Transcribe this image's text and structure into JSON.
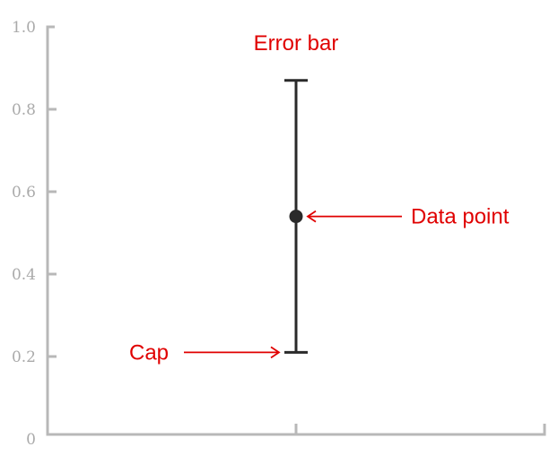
{
  "chart_data": {
    "type": "scatter",
    "title": "",
    "xlabel": "",
    "ylabel": "",
    "ylim": [
      0,
      1.0
    ],
    "y_ticks": [
      {
        "value": 0,
        "label": "0"
      },
      {
        "value": 0.2,
        "label": "0.2"
      },
      {
        "value": 0.4,
        "label": "0.4"
      },
      {
        "value": 0.6,
        "label": "0.6"
      },
      {
        "value": 0.8,
        "label": "0.8"
      },
      {
        "value": 1.0,
        "label": "1.0"
      }
    ],
    "points": [
      {
        "y": 0.54,
        "y_low": 0.21,
        "y_high": 0.87
      }
    ],
    "annotations": [
      {
        "id": "errorbar",
        "text": "Error bar",
        "target": "errorbar"
      },
      {
        "id": "datapoint",
        "text": "Data point",
        "target": "point"
      },
      {
        "id": "cap",
        "text": "Cap",
        "target": "lower-cap"
      }
    ],
    "grid": false,
    "colors": {
      "axis": "#b8b8b8",
      "tick_text": "#aaaaaa",
      "errorbar": "#2a2a2a",
      "annotation": "#e00000"
    }
  }
}
